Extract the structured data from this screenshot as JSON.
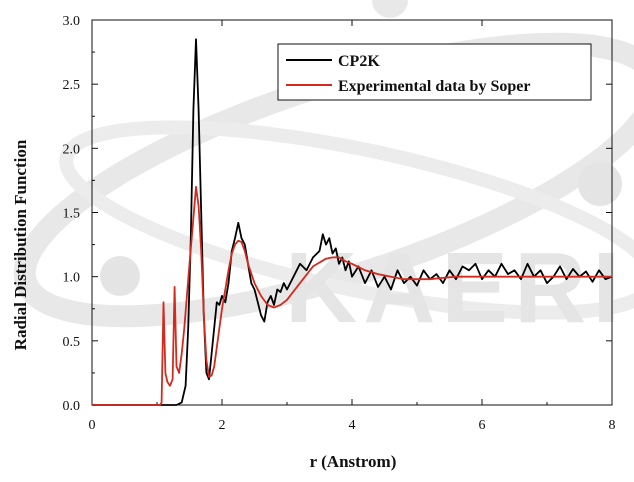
{
  "chart_data": {
    "type": "line",
    "title": "",
    "xlabel": "r (Anstrom)",
    "ylabel": "Radial Distribution Function",
    "xlim": [
      0,
      8
    ],
    "ylim": [
      0,
      3.0
    ],
    "x_ticks": [
      0,
      2,
      4,
      6,
      8
    ],
    "x_tick_labels": [
      "0",
      "2",
      "4",
      "6",
      "8"
    ],
    "y_ticks": [
      0.0,
      0.5,
      1.0,
      1.5,
      2.0,
      2.5,
      3.0
    ],
    "y_tick_labels": [
      "0.0",
      "0.5",
      "1.0",
      "1.5",
      "2.0",
      "2.5",
      "3.0"
    ],
    "grid": false,
    "legend_position": "top-right",
    "watermark_text": "KAERI",
    "series": [
      {
        "name": "CP2K",
        "color": "#000000",
        "x": [
          0.0,
          1.3,
          1.38,
          1.44,
          1.48,
          1.52,
          1.56,
          1.6,
          1.64,
          1.68,
          1.72,
          1.76,
          1.8,
          1.84,
          1.88,
          1.92,
          1.96,
          2.0,
          2.05,
          2.1,
          2.15,
          2.2,
          2.25,
          2.3,
          2.35,
          2.4,
          2.45,
          2.5,
          2.55,
          2.6,
          2.65,
          2.7,
          2.75,
          2.8,
          2.85,
          2.9,
          2.95,
          3.0,
          3.1,
          3.2,
          3.3,
          3.4,
          3.5,
          3.55,
          3.6,
          3.65,
          3.7,
          3.75,
          3.8,
          3.85,
          3.9,
          3.95,
          4.0,
          4.1,
          4.2,
          4.3,
          4.4,
          4.5,
          4.6,
          4.7,
          4.8,
          4.9,
          5.0,
          5.1,
          5.2,
          5.3,
          5.4,
          5.5,
          5.6,
          5.7,
          5.8,
          5.9,
          6.0,
          6.1,
          6.2,
          6.3,
          6.4,
          6.5,
          6.6,
          6.7,
          6.8,
          6.9,
          7.0,
          7.1,
          7.2,
          7.3,
          7.4,
          7.5,
          7.6,
          7.7,
          7.8,
          7.9,
          8.0
        ],
        "y": [
          0.0,
          0.0,
          0.02,
          0.15,
          0.6,
          1.3,
          2.3,
          2.85,
          2.3,
          1.5,
          0.7,
          0.25,
          0.2,
          0.4,
          0.6,
          0.8,
          0.78,
          0.85,
          0.8,
          0.95,
          1.2,
          1.3,
          1.42,
          1.3,
          1.25,
          1.1,
          0.95,
          0.9,
          0.8,
          0.7,
          0.65,
          0.8,
          0.85,
          0.78,
          0.9,
          0.88,
          0.95,
          0.9,
          1.0,
          1.1,
          1.05,
          1.15,
          1.2,
          1.33,
          1.25,
          1.3,
          1.18,
          1.22,
          1.1,
          1.15,
          1.05,
          1.12,
          1.0,
          1.08,
          0.95,
          1.05,
          0.92,
          1.0,
          0.9,
          1.05,
          0.95,
          1.0,
          0.93,
          1.05,
          0.98,
          1.02,
          0.95,
          1.05,
          0.98,
          1.08,
          1.05,
          1.1,
          0.98,
          1.05,
          1.0,
          1.1,
          1.02,
          1.05,
          0.98,
          1.1,
          1.0,
          1.05,
          0.95,
          1.0,
          1.08,
          0.98,
          1.06,
          1.0,
          1.04,
          0.96,
          1.05,
          0.98,
          1.0
        ]
      },
      {
        "name": "Experimental data by Soper",
        "color": "#d42a1e",
        "x": [
          0.0,
          1.05,
          1.07,
          1.1,
          1.13,
          1.16,
          1.2,
          1.24,
          1.27,
          1.3,
          1.34,
          1.38,
          1.42,
          1.46,
          1.5,
          1.55,
          1.6,
          1.64,
          1.68,
          1.72,
          1.76,
          1.8,
          1.84,
          1.88,
          1.92,
          1.96,
          2.0,
          2.05,
          2.1,
          2.15,
          2.2,
          2.25,
          2.3,
          2.35,
          2.4,
          2.5,
          2.6,
          2.7,
          2.8,
          2.9,
          3.0,
          3.2,
          3.4,
          3.6,
          3.7,
          3.8,
          3.9,
          4.0,
          4.2,
          4.4,
          4.6,
          4.8,
          5.0,
          5.2,
          5.4,
          5.6,
          5.8,
          6.0,
          6.5,
          7.0,
          7.5,
          8.0
        ],
        "y": [
          0.0,
          0.0,
          0.02,
          0.8,
          0.25,
          0.18,
          0.15,
          0.2,
          0.92,
          0.3,
          0.25,
          0.4,
          0.6,
          0.85,
          1.1,
          1.4,
          1.7,
          1.55,
          1.2,
          0.7,
          0.35,
          0.22,
          0.23,
          0.3,
          0.45,
          0.6,
          0.75,
          0.9,
          1.05,
          1.18,
          1.25,
          1.28,
          1.27,
          1.2,
          1.1,
          0.95,
          0.85,
          0.78,
          0.76,
          0.78,
          0.82,
          0.95,
          1.08,
          1.14,
          1.15,
          1.15,
          1.12,
          1.1,
          1.05,
          1.02,
          1.0,
          0.98,
          0.98,
          0.98,
          0.99,
          1.0,
          1.0,
          1.0,
          1.0,
          1.0,
          1.0,
          1.0
        ]
      }
    ]
  }
}
